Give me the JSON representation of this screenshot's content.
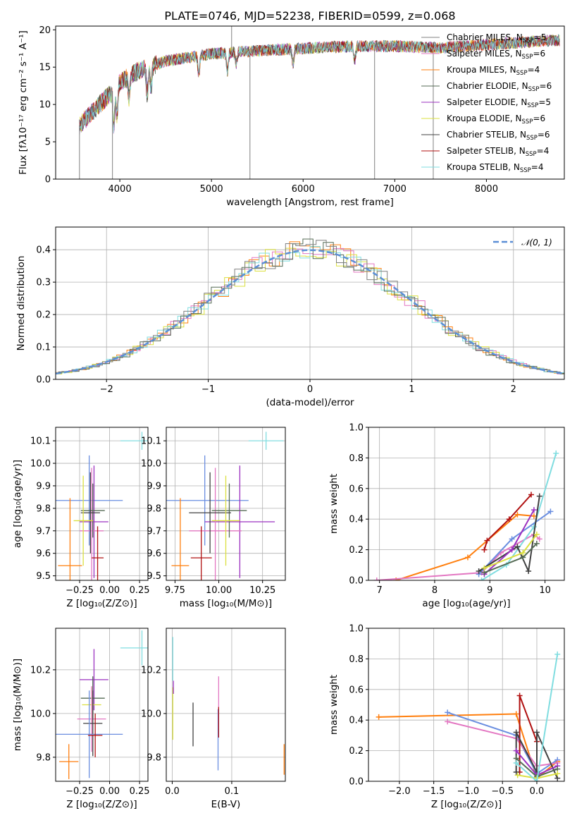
{
  "figure": {
    "title": "PLATE=0746, MJD=52238, FIBERID=0599, z=0.068"
  },
  "chart_data": [
    {
      "id": "spectrum",
      "type": "line",
      "xlabel": "wavelength [Angstrom, rest frame]",
      "ylabel": "Flux [fλ10⁻¹⁷ erg cm⁻² s⁻¹ A⁻¹]",
      "xlim": [
        3300,
        8850
      ],
      "ylim": [
        0,
        20.5
      ],
      "xticks": [
        4000,
        5000,
        6000,
        7000,
        8000
      ],
      "yticks": [
        0,
        5,
        10,
        15,
        20
      ],
      "continuum_knots": {
        "x": [
          3560,
          3700,
          3900,
          4000,
          4200,
          4500,
          5000,
          5500,
          6000,
          6500,
          7000,
          7500,
          8000,
          8500,
          8800
        ],
        "y": [
          7.2,
          9.0,
          11.5,
          13.0,
          14.5,
          15.8,
          16.8,
          17.2,
          17.5,
          17.8,
          17.8,
          17.6,
          18.0,
          18.4,
          18.6
        ]
      },
      "spikes": [
        {
          "x": 3560,
          "to": 0
        },
        {
          "x": 3920,
          "to": 0
        },
        {
          "x": 5220,
          "to": 20.5
        },
        {
          "x": 5420,
          "to": 0
        },
        {
          "x": 6780,
          "to": 0
        },
        {
          "x": 7420,
          "to": 0
        }
      ],
      "legend": [
        {
          "label": "Chabrier MILES, N",
          "sub": "SSP",
          "tail": "=5",
          "color": "#808080"
        },
        {
          "label": "Salpeter MILES, N",
          "sub": "SSP",
          "tail": "=6",
          "color": "#e377c2"
        },
        {
          "label": "Kroupa MILES, N",
          "sub": "SSP",
          "tail": "=4",
          "color": "#ff7f0e"
        },
        {
          "label": "Chabrier ELODIE, N",
          "sub": "SSP",
          "tail": "=6",
          "color": "#556b55"
        },
        {
          "label": "Salpeter ELODIE, N",
          "sub": "SSP",
          "tail": "=5",
          "color": "#9b30c0"
        },
        {
          "label": "Kroupa ELODIE, N",
          "sub": "SSP",
          "tail": "=6",
          "color": "#dbe040"
        },
        {
          "label": "Chabrier STELIB, N",
          "sub": "SSP",
          "tail": "=6",
          "color": "#404040"
        },
        {
          "label": "Salpeter STELIB, N",
          "sub": "SSP",
          "tail": "=4",
          "color": "#b01010"
        },
        {
          "label": "Kroupa STELIB, N",
          "sub": "SSP",
          "tail": "=4",
          "color": "#80dde0"
        }
      ]
    },
    {
      "id": "residuals",
      "type": "bar",
      "xlabel": "(data-model)/error",
      "ylabel": "Normed distribution",
      "xlim": [
        -2.5,
        2.5
      ],
      "ylim": [
        0,
        0.47
      ],
      "xticks": [
        -2,
        -1,
        0,
        1,
        2
      ],
      "yticks": [
        0.0,
        0.1,
        0.2,
        0.3,
        0.4
      ],
      "legend": "𝒩(0, 1)",
      "bin_width": 0.1,
      "colors": [
        "#ff7f0e",
        "#e377c2",
        "#dbe040",
        "#80dde0",
        "#556b55",
        "#808080"
      ]
    },
    {
      "id": "z-age",
      "type": "scatter",
      "xlabel": "Z [log₁₀(Z/Z⊙)]",
      "ylabel": "age [log₁₀(age/yr)]",
      "xlim": [
        -0.45,
        0.32
      ],
      "ylim": [
        9.48,
        10.16
      ],
      "xticks": [
        -0.25,
        0.0,
        0.25
      ],
      "yticks": [
        9.5,
        9.6,
        9.7,
        9.8,
        9.9,
        10.0,
        10.1
      ],
      "points": [
        {
          "x": 0.27,
          "xe": 0.18,
          "y": 10.1,
          "ye": 0.04,
          "c": "#80dde0"
        },
        {
          "x": -0.17,
          "xe": 0.28,
          "y": 9.835,
          "ye": 0.2,
          "c": "#6a8ee0"
        },
        {
          "x": -0.13,
          "xe": 0.12,
          "y": 9.74,
          "ye": 0.25,
          "c": "#9b30c0"
        },
        {
          "x": -0.15,
          "xe": 0.1,
          "y": 9.7,
          "ye": 0.28,
          "c": "#e377c2"
        },
        {
          "x": -0.14,
          "xe": 0.1,
          "y": 9.79,
          "ye": 0.12,
          "c": "#556b55"
        },
        {
          "x": -0.16,
          "xe": 0.08,
          "y": 9.78,
          "ye": 0.18,
          "c": "#404040"
        },
        {
          "x": -0.22,
          "xe": 0.08,
          "y": 9.745,
          "ye": 0.2,
          "c": "#dbe040"
        },
        {
          "x": -0.1,
          "xe": 0.05,
          "y": 9.58,
          "ye": 0.14,
          "c": "#b01010"
        },
        {
          "x": -0.33,
          "xe": 0.1,
          "y": 9.545,
          "ye": 0.3,
          "c": "#ff7f0e"
        }
      ]
    },
    {
      "id": "mass-age",
      "type": "scatter",
      "xlabel": "mass [log₁₀(M/M⊙)]",
      "ylabel": "",
      "xlim": [
        9.7,
        10.38
      ],
      "ylim": [
        9.48,
        10.16
      ],
      "xticks": [
        9.75,
        10.0,
        10.25
      ],
      "yticks": [
        9.5,
        9.6,
        9.7,
        9.8,
        9.9,
        10.0,
        10.1
      ],
      "points": [
        {
          "x": 10.27,
          "xe": 0.1,
          "y": 10.1,
          "ye": 0.04,
          "c": "#80dde0"
        },
        {
          "x": 9.92,
          "xe": 0.25,
          "y": 9.835,
          "ye": 0.2,
          "c": "#6a8ee0"
        },
        {
          "x": 10.12,
          "xe": 0.2,
          "y": 9.74,
          "ye": 0.25,
          "c": "#9b30c0"
        },
        {
          "x": 9.98,
          "xe": 0.15,
          "y": 9.7,
          "ye": 0.28,
          "c": "#e377c2"
        },
        {
          "x": 10.06,
          "xe": 0.1,
          "y": 9.79,
          "ye": 0.12,
          "c": "#556b55"
        },
        {
          "x": 9.95,
          "xe": 0.12,
          "y": 9.78,
          "ye": 0.18,
          "c": "#404040"
        },
        {
          "x": 10.04,
          "xe": 0.08,
          "y": 9.745,
          "ye": 0.2,
          "c": "#dbe040"
        },
        {
          "x": 9.9,
          "xe": 0.06,
          "y": 9.58,
          "ye": 0.14,
          "c": "#b01010"
        },
        {
          "x": 9.78,
          "xe": 0.05,
          "y": 9.545,
          "ye": 0.3,
          "c": "#ff7f0e"
        }
      ]
    },
    {
      "id": "age-weight",
      "type": "line",
      "xlabel": "age  [log₁₀(age/yr)]",
      "ylabel": "mass weight",
      "xlim": [
        6.8,
        10.35
      ],
      "ylim": [
        0,
        1.0
      ],
      "xticks": [
        7,
        8,
        9,
        10
      ],
      "yticks": [
        0.0,
        0.2,
        0.4,
        0.6,
        0.8,
        1.0
      ],
      "series": [
        {
          "c": "#ff7f0e",
          "x": [
            7.3,
            8.6,
            9.5,
            9.8
          ],
          "y": [
            0.0,
            0.15,
            0.43,
            0.42
          ]
        },
        {
          "c": "#e377c2",
          "x": [
            6.95,
            8.85,
            9.2,
            9.8,
            9.9
          ],
          "y": [
            0.0,
            0.05,
            0.18,
            0.3,
            0.27
          ]
        },
        {
          "c": "#b01010",
          "x": [
            8.9,
            8.95,
            9.35,
            9.75
          ],
          "y": [
            0.2,
            0.26,
            0.4,
            0.56
          ]
        },
        {
          "c": "#80dde0",
          "x": [
            8.85,
            9.3,
            9.8,
            10.2
          ],
          "y": [
            0.0,
            0.1,
            0.35,
            0.83
          ]
        },
        {
          "c": "#6a8ee0",
          "x": [
            8.8,
            9.4,
            10.1
          ],
          "y": [
            0.04,
            0.27,
            0.45
          ]
        },
        {
          "c": "#404040",
          "x": [
            8.8,
            9.5,
            9.7,
            9.9
          ],
          "y": [
            0.06,
            0.22,
            0.06,
            0.55
          ]
        },
        {
          "c": "#9b30c0",
          "x": [
            8.9,
            9.4,
            9.8
          ],
          "y": [
            0.04,
            0.2,
            0.46
          ]
        },
        {
          "c": "#556b55",
          "x": [
            8.9,
            9.6,
            9.85
          ],
          "y": [
            0.05,
            0.15,
            0.24
          ]
        },
        {
          "c": "#dbe040",
          "x": [
            8.9,
            9.6,
            9.85
          ],
          "y": [
            0.08,
            0.18,
            0.3
          ]
        }
      ]
    },
    {
      "id": "z-mass",
      "type": "scatter",
      "xlabel": "Z [log₁₀(Z/Z⊙)]",
      "ylabel": "mass [log₁₀(M/M⊙)]",
      "xlim": [
        -0.45,
        0.32
      ],
      "ylim": [
        9.69,
        10.39
      ],
      "xticks": [
        -0.25,
        0.0,
        0.25
      ],
      "yticks": [
        9.8,
        10.0,
        10.2
      ],
      "points": [
        {
          "x": 0.27,
          "xe": 0.18,
          "y": 10.3,
          "ye": 0.08,
          "c": "#80dde0"
        },
        {
          "x": -0.13,
          "xe": 0.12,
          "y": 10.155,
          "ye": 0.14,
          "c": "#9b30c0"
        },
        {
          "x": -0.14,
          "xe": 0.1,
          "y": 10.07,
          "ye": 0.1,
          "c": "#556b55"
        },
        {
          "x": -0.15,
          "xe": 0.08,
          "y": 10.04,
          "ye": 0.08,
          "c": "#dbe040"
        },
        {
          "x": -0.15,
          "xe": 0.12,
          "y": 9.975,
          "ye": 0.15,
          "c": "#e377c2"
        },
        {
          "x": -0.14,
          "xe": 0.08,
          "y": 9.955,
          "ye": 0.15,
          "c": "#404040"
        },
        {
          "x": -0.17,
          "xe": 0.28,
          "y": 9.905,
          "ye": 0.2,
          "c": "#6a8ee0"
        },
        {
          "x": -0.12,
          "xe": 0.06,
          "y": 9.9,
          "ye": 0.1,
          "c": "#b01010"
        },
        {
          "x": -0.34,
          "xe": 0.08,
          "y": 9.78,
          "ye": 0.08,
          "c": "#ff7f0e"
        }
      ]
    },
    {
      "id": "ebv-mass",
      "type": "scatter",
      "xlabel": "E(B-V)",
      "ylabel": "",
      "xlim": [
        -0.01,
        0.19
      ],
      "ylim": [
        9.69,
        10.39
      ],
      "xticks": [
        0.0,
        0.1
      ],
      "yticks": [
        9.8,
        10.0,
        10.2
      ],
      "points": [
        {
          "x": 0.001,
          "y": 10.25,
          "ye": 0.1,
          "c": "#80dde0"
        },
        {
          "x": 0.001,
          "y": 10.0,
          "ye": 0.12,
          "c": "#dbe040"
        },
        {
          "x": 0.002,
          "y": 10.12,
          "ye": 0.03,
          "c": "#9b30c0"
        },
        {
          "x": 0.035,
          "y": 9.95,
          "ye": 0.1,
          "c": "#404040"
        },
        {
          "x": 0.077,
          "y": 9.88,
          "ye": 0.14,
          "c": "#6a8ee0"
        },
        {
          "x": 0.078,
          "y": 10.05,
          "ye": 0.12,
          "c": "#e377c2"
        },
        {
          "x": 0.078,
          "y": 9.96,
          "ye": 0.07,
          "c": "#b01010"
        },
        {
          "x": 0.188,
          "y": 9.79,
          "ye": 0.07,
          "c": "#ff7f0e"
        }
      ]
    },
    {
      "id": "z-weight",
      "type": "line",
      "xlabel": "Z [log₁₀(Z/Z⊙)]",
      "ylabel": "mass weight",
      "xlim": [
        -2.45,
        0.4
      ],
      "ylim": [
        0,
        1.0
      ],
      "xticks": [
        -2.0,
        -1.5,
        -1.0,
        -0.5,
        0.0
      ],
      "yticks": [
        0.0,
        0.2,
        0.4,
        0.6,
        0.8,
        1.0
      ],
      "series": [
        {
          "c": "#ff7f0e",
          "x": [
            -2.3,
            -0.3,
            0.0,
            0.3
          ],
          "y": [
            0.42,
            0.44,
            0.02,
            0.13
          ]
        },
        {
          "c": "#6a8ee0",
          "x": [
            -1.3,
            -0.3,
            0.0,
            0.3
          ],
          "y": [
            0.45,
            0.3,
            0.05,
            0.14
          ]
        },
        {
          "c": "#e377c2",
          "x": [
            -1.3,
            -0.3,
            0.0,
            0.3
          ],
          "y": [
            0.39,
            0.28,
            0.1,
            0.12
          ]
        },
        {
          "c": "#b01010",
          "x": [
            -0.25,
            -0.25,
            0.0,
            0.0
          ],
          "y": [
            0.06,
            0.56,
            0.26,
            0.0
          ]
        },
        {
          "c": "#404040",
          "x": [
            -0.3,
            -0.3,
            0.0,
            0.0,
            0.3
          ],
          "y": [
            0.06,
            0.32,
            0.06,
            0.32,
            0.02
          ]
        },
        {
          "c": "#9b30c0",
          "x": [
            -0.3,
            0.0,
            0.3
          ],
          "y": [
            0.2,
            0.04,
            0.1
          ]
        },
        {
          "c": "#556b55",
          "x": [
            -0.3,
            0.0,
            0.3
          ],
          "y": [
            0.15,
            0.03,
            0.08
          ]
        },
        {
          "c": "#dbe040",
          "x": [
            -0.28,
            0.0,
            0.3
          ],
          "y": [
            0.04,
            0.02,
            0.05
          ]
        },
        {
          "c": "#80dde0",
          "x": [
            -0.3,
            0.0,
            0.3
          ],
          "y": [
            0.12,
            0.0,
            0.83
          ]
        }
      ]
    }
  ]
}
